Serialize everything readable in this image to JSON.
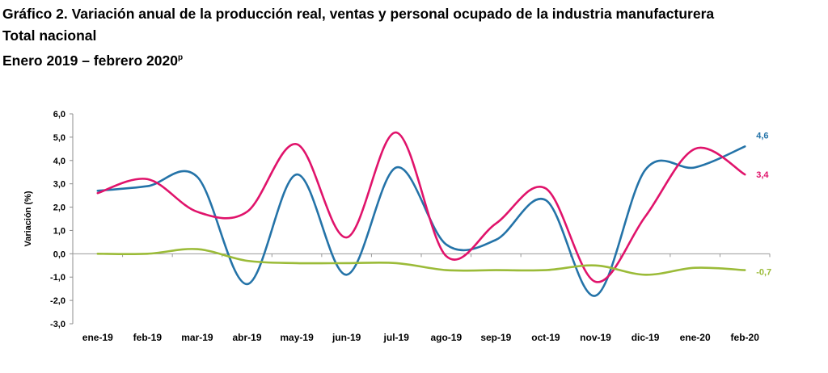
{
  "header": {
    "title": "Gráfico 2. Variación anual de la producción real, ventas y personal ocupado de la industria manufacturera",
    "subtitle": "Total nacional",
    "period": "Enero 2019 – febrero 2020",
    "period_note": "p"
  },
  "chart_data": {
    "type": "line",
    "title": "Gráfico 2. Variación anual de la producción real, ventas y personal ocupado de la industria manufacturera",
    "xlabel": "",
    "ylabel": "Variación (%)",
    "ylim": [
      -3.0,
      6.0
    ],
    "yticks": [
      "6,0",
      "5,0",
      "4,0",
      "3,0",
      "2,0",
      "1,0",
      "0,0",
      "-1,0",
      "-2,0",
      "-3,0"
    ],
    "categories": [
      "ene-19",
      "feb-19",
      "mar-19",
      "abr-19",
      "may-19",
      "jun-19",
      "jul-19",
      "ago-19",
      "sep-19",
      "oct-19",
      "nov-19",
      "dic-19",
      "ene-20",
      "feb-20"
    ],
    "grid": false,
    "legend": "none",
    "series": [
      {
        "color": "#2473a8",
        "values": [
          2.7,
          2.9,
          3.3,
          -1.3,
          3.4,
          -0.9,
          3.7,
          0.4,
          0.6,
          2.3,
          -1.8,
          3.6,
          3.7,
          4.6
        ],
        "end_label": "4,6"
      },
      {
        "color": "#e0136b",
        "values": [
          2.6,
          3.2,
          1.8,
          1.8,
          4.7,
          0.7,
          5.2,
          -0.1,
          1.3,
          2.8,
          -1.2,
          1.6,
          4.5,
          3.4
        ],
        "end_label": "3,4"
      },
      {
        "color": "#9bbb38",
        "values": [
          0.0,
          0.0,
          0.2,
          -0.3,
          -0.4,
          -0.4,
          -0.4,
          -0.7,
          -0.7,
          -0.7,
          -0.5,
          -0.9,
          -0.6,
          -0.7
        ],
        "end_label": "-0,7"
      }
    ]
  }
}
